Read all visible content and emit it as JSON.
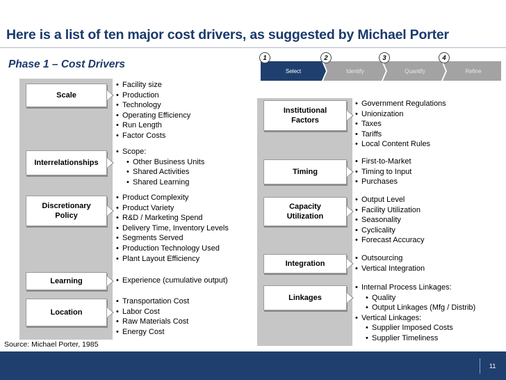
{
  "title": "Here is a list of ten major cost drivers, as suggested by Michael Porter",
  "phase": "Phase 1 – Cost Drivers",
  "process": {
    "steps": [
      {
        "num": "1",
        "label": "Select"
      },
      {
        "num": "2",
        "label": "Identify"
      },
      {
        "num": "3",
        "label": "Quantify"
      },
      {
        "num": "4",
        "label": "Refine"
      }
    ]
  },
  "left": [
    {
      "driver": "Scale",
      "items": [
        "Facility size",
        "Production",
        "Technology",
        "Operating Efficiency",
        "Run Length",
        "Factor Costs"
      ]
    },
    {
      "driver": "Interrelationships",
      "items": [
        "Scope:",
        "Other Business Units",
        "Shared Activities",
        "Shared Learning"
      ]
    },
    {
      "driver": "Discretionary Policy",
      "items": [
        "Product Complexity",
        "Product Variety",
        "R&D / Marketing Spend",
        "Delivery Time, Inventory Levels",
        "Segments Served",
        "Production Technology Used",
        "Plant Layout Efficiency"
      ]
    },
    {
      "driver": "Learning",
      "items": [
        "Experience (cumulative output)"
      ]
    },
    {
      "driver": "Location",
      "items": [
        "Transportation Cost",
        "Labor Cost",
        "Raw Materials Cost",
        "Energy Cost"
      ]
    }
  ],
  "right": [
    {
      "driver": "Institutional Factors",
      "items": [
        "Government Regulations",
        "Unionization",
        "Taxes",
        "Tariffs",
        "Local Content Rules"
      ]
    },
    {
      "driver": "Timing",
      "items": [
        "First-to-Market",
        "Timing to Input",
        "Purchases"
      ]
    },
    {
      "driver": "Capacity Utilization",
      "items": [
        "Output Level",
        "Facility Utilization",
        "Seasonality",
        "Cyclicality",
        "Forecast Accuracy"
      ]
    },
    {
      "driver": "Integration",
      "items": [
        "Outsourcing",
        "Vertical Integration"
      ]
    },
    {
      "driver": "Linkages",
      "items": [
        "Internal Process Linkages:",
        "Quality",
        "Output Linkages (Mfg / Distrib)",
        "Vertical Linkages:",
        "Supplier Imposed Costs",
        "Supplier Timeliness"
      ]
    }
  ],
  "source": "Source: Michael Porter, 1985",
  "page_number": "11"
}
